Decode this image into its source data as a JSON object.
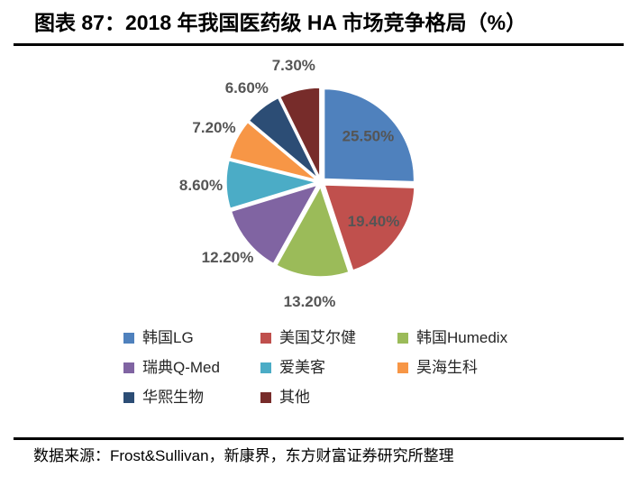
{
  "header": {
    "title": "图表 87：2018 年我国医药级 HA 市场竞争格局（%）"
  },
  "chart_data": {
    "type": "pie",
    "title": "2018 年我国医药级 HA 市场竞争格局（%）",
    "unit": "%",
    "start_angle_deg": 0,
    "direction": "clockwise",
    "exploded": true,
    "legend_position": "bottom",
    "label_color": "#595959",
    "segments": [
      {
        "label": "韩国LG",
        "value": 25.5,
        "display": "25.50%",
        "color": "#4F81BD"
      },
      {
        "label": "美国艾尔健",
        "value": 19.4,
        "display": "19.40%",
        "color": "#C0504D"
      },
      {
        "label": "韩国Humedix",
        "value": 13.2,
        "display": "13.20%",
        "color": "#9BBB59"
      },
      {
        "label": "瑞典Q-Med",
        "value": 12.2,
        "display": "12.20%",
        "color": "#8064A2"
      },
      {
        "label": "爱美客",
        "value": 8.6,
        "display": "8.60%",
        "color": "#4BACC6"
      },
      {
        "label": "昊海生科",
        "value": 7.2,
        "display": "7.20%",
        "color": "#F79646"
      },
      {
        "label": "华熙生物",
        "value": 6.6,
        "display": "6.60%",
        "color": "#2C4D75"
      },
      {
        "label": "其他",
        "value": 7.3,
        "display": "7.30%",
        "color": "#772C2A"
      }
    ]
  },
  "footer": {
    "source": "数据来源：Frost&Sullivan，新康界，东方财富证券研究所整理"
  }
}
